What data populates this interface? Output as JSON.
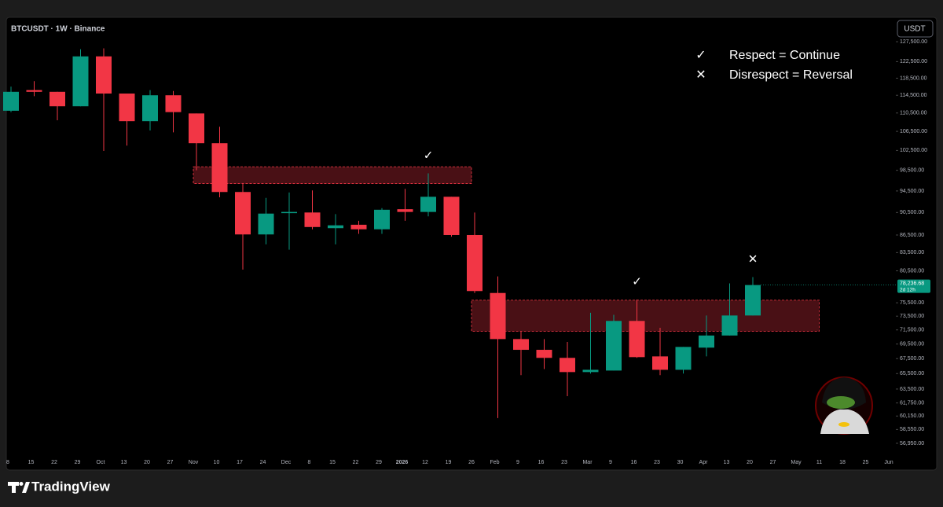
{
  "chart_data": {
    "type": "candlestick",
    "title": "BTCUSDT · 1W · Binance",
    "currency_button": "USDT",
    "brand": "TradingView",
    "log": true,
    "up_color": "#089981",
    "down_color": "#f23645",
    "zone_color": "#f23645",
    "categories": [
      "8",
      "15",
      "22",
      "29",
      "Oct",
      "13",
      "20",
      "27",
      "Nov",
      "10",
      "17",
      "24",
      "Dec",
      "8",
      "15",
      "22",
      "29",
      "2026",
      "12",
      "19",
      "26",
      "Feb",
      "9",
      "16",
      "23",
      "Mar",
      "9",
      "16",
      "23",
      "30",
      "Apr",
      "13",
      "20",
      "27",
      "May",
      "11",
      "18",
      "25",
      "Jun"
    ],
    "open": [
      111000,
      115700,
      115300,
      112000,
      123800,
      114900,
      108700,
      114500,
      110400,
      104000,
      94300,
      86600,
      90400,
      90500,
      87700,
      88300,
      87500,
      91100,
      90600,
      93400,
      86500,
      77000,
      70200,
      68700,
      67600,
      65700,
      65900,
      72800,
      67800,
      66000,
      69000,
      70700,
      73600,
      null,
      null,
      null,
      null,
      null,
      null
    ],
    "high": [
      116500,
      117800,
      115300,
      125600,
      125800,
      114900,
      115700,
      115500,
      110400,
      107500,
      96000,
      93200,
      94200,
      94600,
      90200,
      89000,
      91300,
      94900,
      97900,
      93400,
      90500,
      79600,
      71300,
      70200,
      69800,
      74000,
      73700,
      76000,
      71800,
      69100,
      73600,
      78500,
      79500,
      null,
      null,
      null,
      null,
      null,
      null
    ],
    "low": [
      110700,
      114300,
      108900,
      112000,
      102400,
      103500,
      106700,
      106300,
      98500,
      93300,
      80700,
      84900,
      84000,
      87500,
      84900,
      86700,
      86700,
      89000,
      89800,
      86200,
      77000,
      59900,
      65300,
      66100,
      62600,
      65500,
      65900,
      67600,
      65300,
      65500,
      67800,
      70700,
      73600,
      null,
      null,
      null,
      null,
      null,
      null
    ],
    "close": [
      115300,
      115300,
      112000,
      123800,
      114900,
      108700,
      114500,
      110700,
      104000,
      94300,
      86600,
      90300,
      90600,
      87900,
      88200,
      87500,
      91000,
      90600,
      93400,
      86500,
      77300,
      70200,
      68700,
      67600,
      65700,
      66000,
      72800,
      67700,
      66000,
      69100,
      70700,
      73600,
      78236.68,
      null,
      null,
      null,
      null,
      null,
      null
    ],
    "markers": [
      null,
      null,
      null,
      null,
      null,
      null,
      null,
      null,
      null,
      null,
      null,
      null,
      null,
      null,
      null,
      null,
      null,
      null,
      "✓",
      null,
      null,
      null,
      null,
      null,
      null,
      null,
      null,
      "✓",
      null,
      null,
      null,
      null,
      "✕",
      null,
      null,
      null,
      null,
      null,
      null
    ],
    "zones": [
      {
        "start": "Nov",
        "end": "26",
        "low": 95900,
        "high": 99200
      },
      {
        "start": "26",
        "end": "11",
        "low": 71300,
        "high": 75900
      }
    ],
    "legend": [
      {
        "symbol": "✓",
        "text": "Respect = Continue"
      },
      {
        "symbol": "✕",
        "text": "Disrespect = Reversal"
      }
    ],
    "last_price": {
      "value": 78236.68,
      "label": "78,236.68",
      "countdown": "2d 12h"
    },
    "ylim": [
      55700,
      133900
    ],
    "yticks": [
      {
        "value": 127500,
        "label": "127,500.00"
      },
      {
        "value": 122500,
        "label": "122,500.00"
      },
      {
        "value": 118500,
        "label": "118,500.00"
      },
      {
        "value": 114500,
        "label": "114,500.00"
      },
      {
        "value": 110500,
        "label": "110,500.00"
      },
      {
        "value": 106500,
        "label": "106,500.00"
      },
      {
        "value": 102500,
        "label": "102,500.00"
      },
      {
        "value": 98500,
        "label": "98,500.00"
      },
      {
        "value": 94500,
        "label": "94,500.00"
      },
      {
        "value": 90500,
        "label": "90,500.00"
      },
      {
        "value": 86500,
        "label": "86,500.00"
      },
      {
        "value": 83500,
        "label": "83,500.00"
      },
      {
        "value": 80500,
        "label": "80,500.00"
      },
      {
        "value": 75500,
        "label": "75,500.00"
      },
      {
        "value": 73500,
        "label": "73,500.00"
      },
      {
        "value": 71500,
        "label": "71,500.00"
      },
      {
        "value": 69500,
        "label": "69,500.00"
      },
      {
        "value": 67500,
        "label": "67,500.00"
      },
      {
        "value": 65500,
        "label": "65,500.00"
      },
      {
        "value": 63500,
        "label": "63,500.00"
      },
      {
        "value": 61750,
        "label": "61,750.00"
      },
      {
        "value": 60150,
        "label": "60,150.00"
      },
      {
        "value": 58550,
        "label": "58,550.00"
      },
      {
        "value": 56950,
        "label": "56,950.00"
      }
    ]
  }
}
